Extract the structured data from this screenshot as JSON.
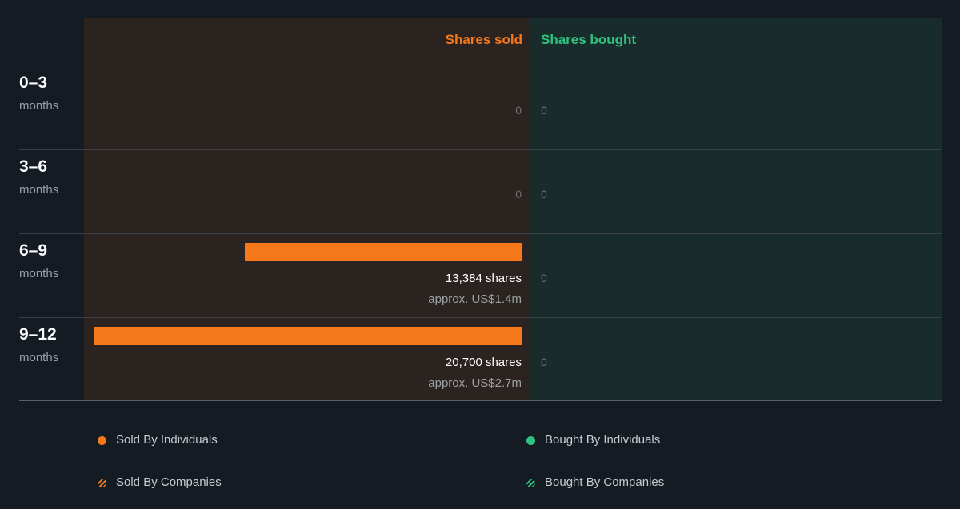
{
  "chart_data": {
    "type": "bar",
    "headers": {
      "sold": "Shares sold",
      "bought": "Shares bought"
    },
    "categories": [
      {
        "period": "0–3",
        "unit": "months"
      },
      {
        "period": "3–6",
        "unit": "months"
      },
      {
        "period": "6–9",
        "unit": "months"
      },
      {
        "period": "9–12",
        "unit": "months"
      }
    ],
    "series": [
      {
        "name": "Shares sold",
        "values": [
          0,
          0,
          13384,
          20700
        ],
        "labels": [
          "0",
          "0",
          "13,384 shares",
          "20,700 shares"
        ],
        "approx": [
          "",
          "",
          "approx. US$1.4m",
          "approx. US$2.7m"
        ]
      },
      {
        "name": "Shares bought",
        "values": [
          0,
          0,
          0,
          0
        ],
        "labels": [
          "0",
          "0",
          "0",
          "0"
        ]
      }
    ],
    "legend": [
      {
        "label": "Sold By Individuals",
        "style": "dot",
        "color": "#f5781b"
      },
      {
        "label": "Sold By Companies",
        "style": "hatched",
        "color": "#f5781b"
      },
      {
        "label": "Bought By Individuals",
        "style": "dot",
        "color": "#2fc27f"
      },
      {
        "label": "Bought By Companies",
        "style": "hatched",
        "color": "#2fc27f"
      }
    ],
    "colors": {
      "sold": "#f5781b",
      "bought": "#2fc27f"
    }
  }
}
